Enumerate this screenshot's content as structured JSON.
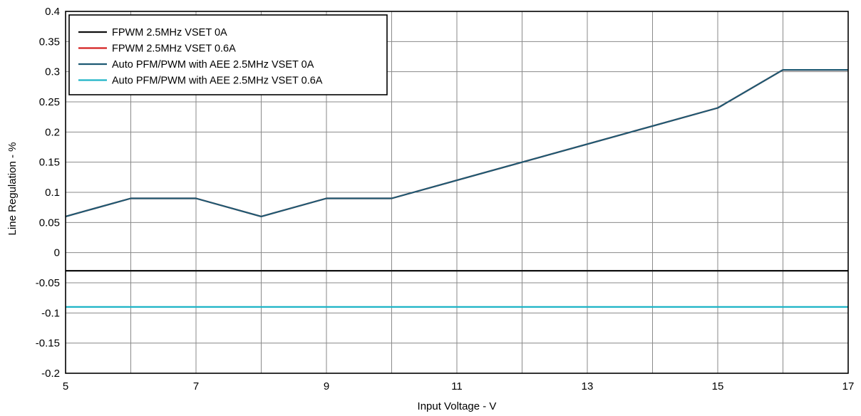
{
  "chart_data": {
    "type": "line",
    "xlabel": "Input Voltage - V",
    "ylabel": "Line Regulation - %",
    "xlim": [
      5,
      17
    ],
    "ylim": [
      -0.2,
      0.4
    ],
    "xticks": [
      5,
      7,
      9,
      11,
      13,
      15,
      17
    ],
    "yticks": [
      0.4,
      0.35,
      0.3,
      0.25,
      0.2,
      0.15,
      0.1,
      0.05,
      0,
      -0.05,
      -0.1,
      -0.15,
      -0.2
    ],
    "ytick_labels": [
      "0.4",
      "0.35",
      "0.3",
      "0.25",
      "0.2",
      "0.15",
      "0.1",
      "0.05",
      "0",
      "-0.05",
      "-0.1",
      "-0.15",
      "-0.2"
    ],
    "xgrid": [
      5,
      6,
      7,
      8,
      9,
      10,
      11,
      12,
      13,
      14,
      15,
      16,
      17
    ],
    "grid": true,
    "legend_position": "top-left",
    "series": [
      {
        "name": "FPWM 2.5MHz VSET 0A",
        "color": "#111111",
        "x": [
          5,
          6,
          7,
          8,
          9,
          10,
          11,
          12,
          13,
          14,
          15,
          16,
          17
        ],
        "y": [
          -0.03,
          -0.03,
          -0.03,
          -0.03,
          -0.03,
          -0.03,
          -0.03,
          -0.03,
          -0.03,
          -0.03,
          -0.03,
          -0.03,
          -0.03
        ]
      },
      {
        "name": "FPWM 2.5MHz VSET 0.6A",
        "color": "#d42020",
        "x": [
          5,
          6,
          7,
          8,
          9,
          10,
          11,
          12,
          13,
          14,
          15,
          16,
          17
        ],
        "y": [
          0.06,
          0.09,
          0.09,
          0.06,
          0.09,
          0.09,
          0.12,
          0.15,
          0.18,
          0.21,
          0.24,
          0.303,
          0.303
        ]
      },
      {
        "name": "Auto PFM/PWM with AEE 2.5MHz VSET 0A",
        "color": "#1e5a73",
        "x": [
          5,
          6,
          7,
          8,
          9,
          10,
          11,
          12,
          13,
          14,
          15,
          16,
          17
        ],
        "y": [
          0.06,
          0.09,
          0.09,
          0.06,
          0.09,
          0.09,
          0.12,
          0.15,
          0.18,
          0.21,
          0.24,
          0.303,
          0.303
        ]
      },
      {
        "name": "Auto PFM/PWM with AEE 2.5MHz VSET 0.6A",
        "color": "#1fb4c6",
        "x": [
          5,
          6,
          7,
          8,
          9,
          10,
          11,
          12,
          13,
          14,
          15,
          16,
          17
        ],
        "y": [
          -0.09,
          -0.09,
          -0.09,
          -0.09,
          -0.09,
          -0.09,
          -0.09,
          -0.09,
          -0.09,
          -0.09,
          -0.09,
          -0.09,
          -0.09
        ]
      }
    ]
  }
}
